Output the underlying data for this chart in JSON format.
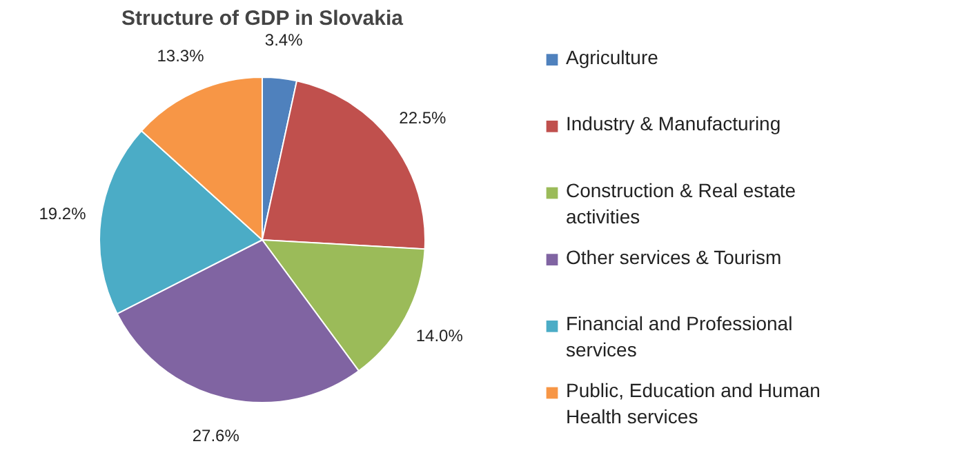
{
  "chart_data": {
    "type": "pie",
    "title": "Structure of GDP in Slovakia",
    "categories": [
      "Agriculture",
      "Industry & Manufacturing",
      "Construction & Real estate activities",
      "Other services & Tourism",
      "Financial and Professional services",
      "Public, Education and Human Health services"
    ],
    "values": [
      3.4,
      22.5,
      14.0,
      27.6,
      19.2,
      13.3
    ],
    "value_labels": [
      "3.4%",
      "22.5%",
      "14.0%",
      "27.6%",
      "19.2%",
      "13.3%"
    ],
    "colors": [
      "#4f81bd",
      "#c0504d",
      "#9bbb59",
      "#8064a2",
      "#4bacc6",
      "#f79646"
    ],
    "legend": "right"
  }
}
